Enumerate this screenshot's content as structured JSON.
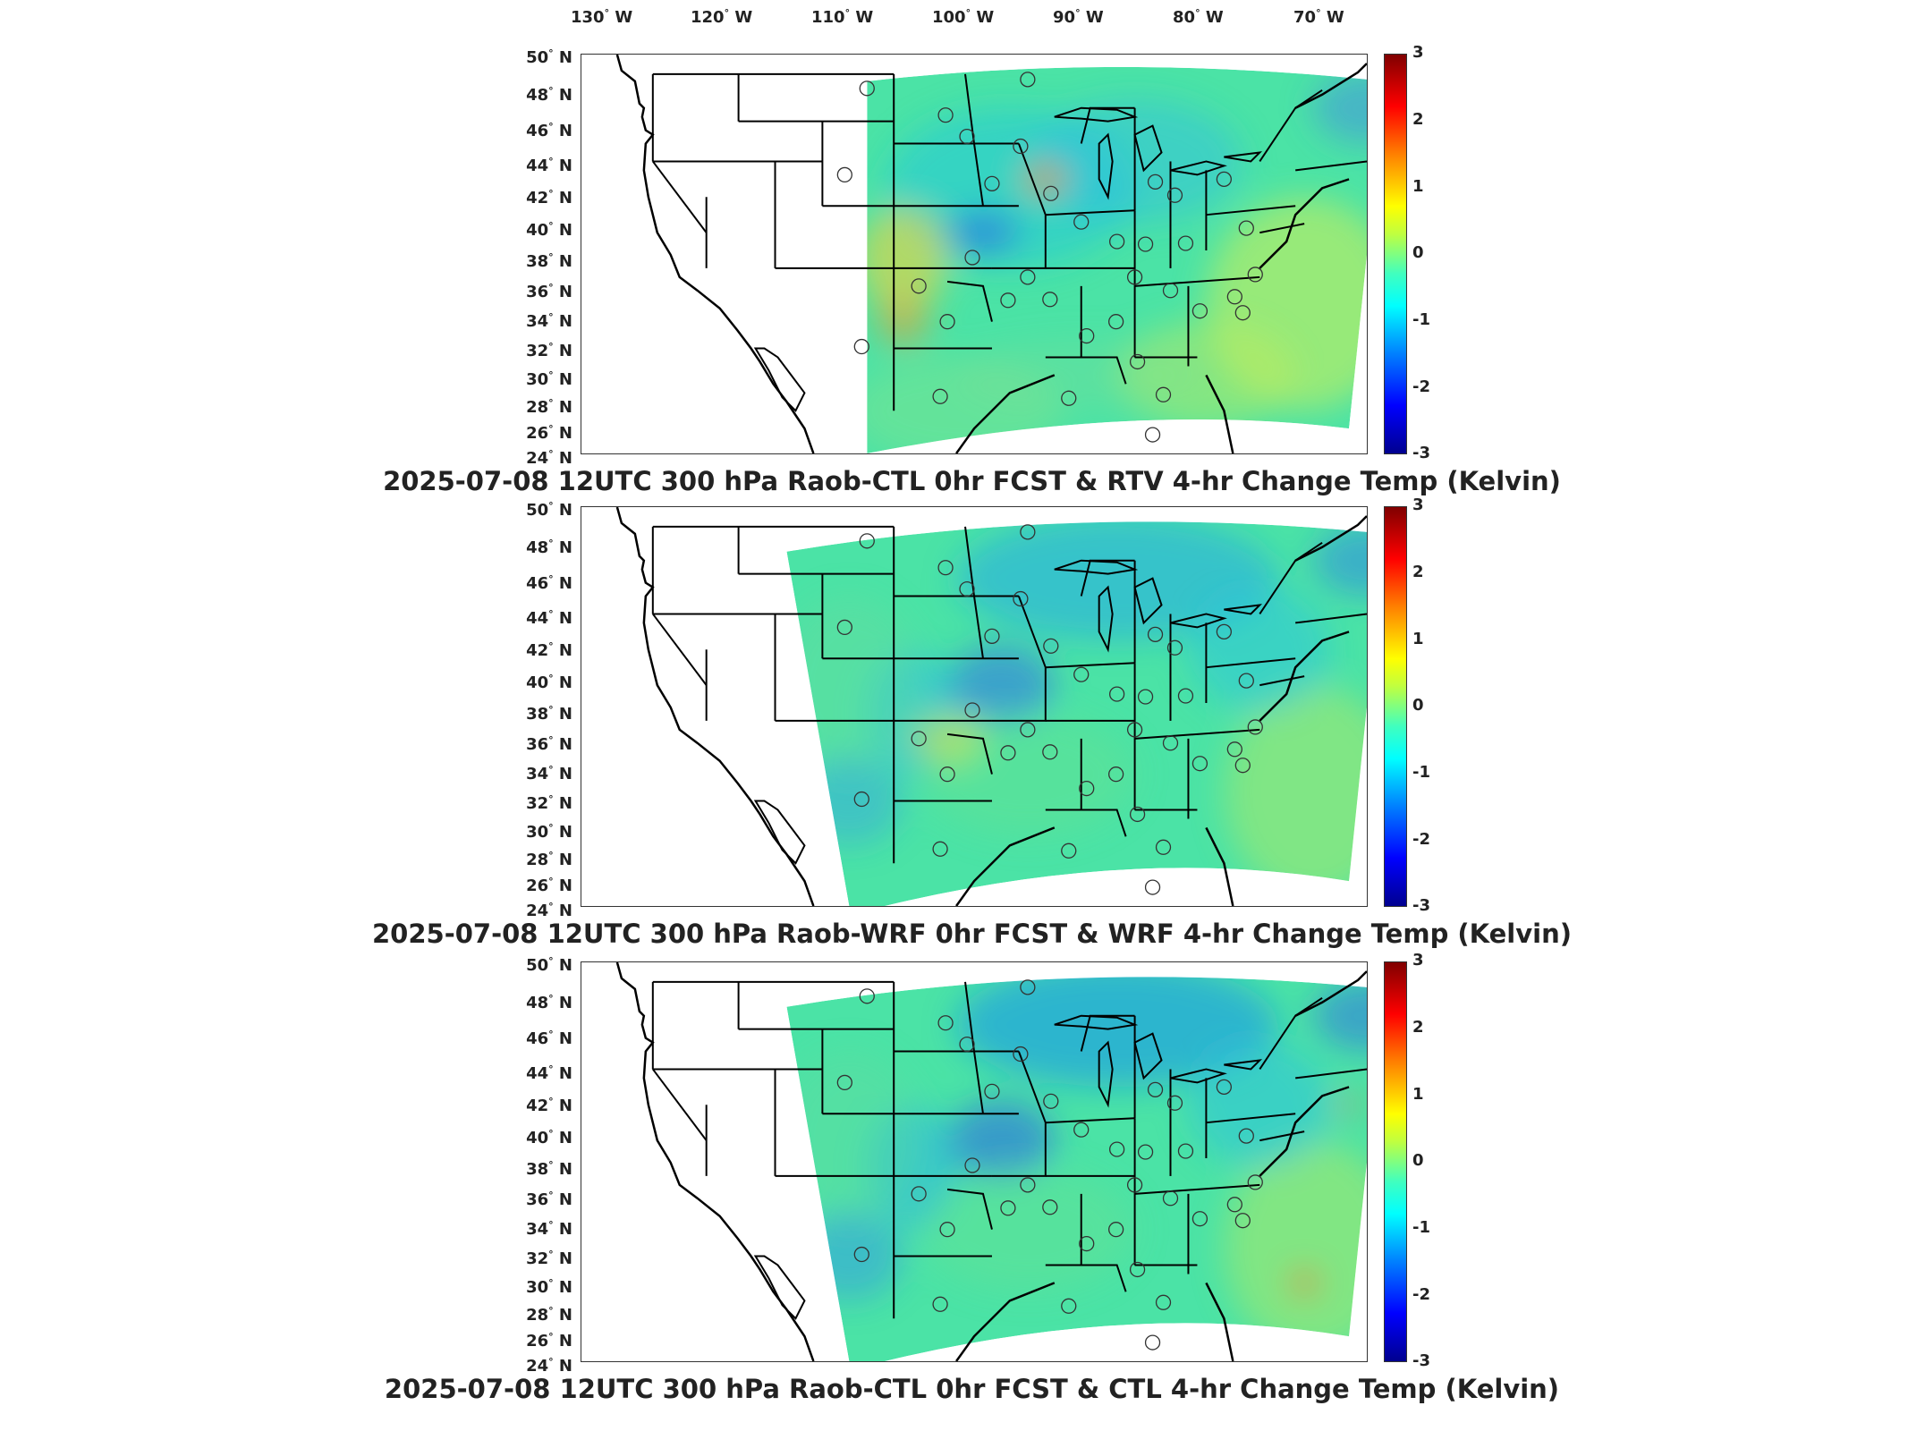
{
  "longitude_ticks": [
    "130° W",
    "120° W",
    "110° W",
    "100° W",
    "90° W",
    "80° W",
    "70° W"
  ],
  "latitude_ticks": [
    "50° N",
    "48° N",
    "46° N",
    "44° N",
    "42° N",
    "40° N",
    "38° N",
    "36° N",
    "34° N",
    "32° N",
    "30° N",
    "28° N",
    "26° N",
    "24° N"
  ],
  "colorbar": {
    "ticks": [
      "3",
      "2",
      "1",
      "0",
      "-1",
      "-2",
      "-3"
    ],
    "colormap": "jet",
    "range": [
      -3,
      3
    ],
    "colors": [
      "#00008f",
      "#0000ff",
      "#00ffff",
      "#80ff80",
      "#ffff00",
      "#ff0000",
      "#800000"
    ]
  },
  "panels": [
    {
      "title": "2025-07-08 12UTC 300 hPa Raob-CTL 0hr FCST & RTV 4-hr Change Temp (Kelvin)"
    },
    {
      "title": "2025-07-08 12UTC 300 hPa Raob-WRF 0hr FCST & WRF 4-hr Change Temp (Kelvin)"
    },
    {
      "title": "2025-07-08 12UTC 300 hPa Raob-CTL 0hr FCST & CTL 4-hr Change Temp (Kelvin)"
    }
  ],
  "map": {
    "coastline_color": "#000000",
    "field_base_color": "#4be3a6",
    "station_marker": "open circle"
  }
}
